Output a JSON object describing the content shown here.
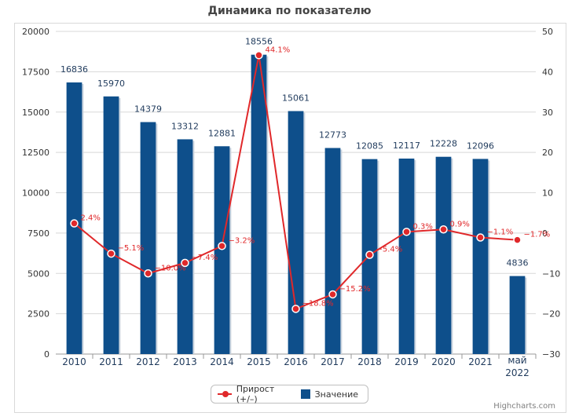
{
  "chart_data": {
    "title": "Динамика по показателю",
    "type": "bar+line",
    "categories": [
      "2010",
      "2011",
      "2012",
      "2013",
      "2014",
      "2015",
      "2016",
      "2017",
      "2018",
      "2019",
      "2020",
      "2021",
      "май 2022"
    ],
    "series": [
      {
        "name": "Значение",
        "type": "bar",
        "axis": "left",
        "color": "#0e4f8b",
        "values": [
          16836,
          15970,
          14379,
          13312,
          12881,
          18556,
          15061,
          12773,
          12085,
          12117,
          12228,
          12096,
          4836
        ],
        "labels": [
          "16836",
          "15970",
          "14379",
          "13312",
          "12881",
          "18556",
          "15061",
          "12773",
          "12085",
          "12117",
          "12228",
          "12096",
          "4836"
        ]
      },
      {
        "name": "Прирост (+/–)",
        "type": "line",
        "axis": "right",
        "color": "#e0282a",
        "values": [
          2.4,
          -5.1,
          -10.0,
          -7.4,
          -3.2,
          44.1,
          -18.8,
          -15.2,
          -5.4,
          0.3,
          0.9,
          -1.1,
          -1.7
        ],
        "labels": [
          "2.4%",
          "-5.1%",
          "-10.0%",
          "-7.4%",
          "-3.2%",
          "44.1%",
          "-18.8%",
          "-15.2%",
          "-5.4%",
          "0.3%",
          "0.9%",
          "-1.1%",
          "-1.7%"
        ]
      }
    ],
    "y_left": {
      "min": 0,
      "max": 20000,
      "ticks": [
        "0",
        "2500",
        "5000",
        "7500",
        "10000",
        "12500",
        "15000",
        "17500",
        "20000"
      ]
    },
    "y_right": {
      "min": -30,
      "max": 50,
      "ticks": [
        "-30",
        "-20",
        "-10",
        "0",
        "10",
        "20",
        "30",
        "40",
        "50"
      ]
    },
    "grid": true,
    "legend_position": "bottom-center",
    "legend": [
      "Прирост (+/–)",
      "Значение"
    ]
  },
  "credits": "Highcharts.com"
}
